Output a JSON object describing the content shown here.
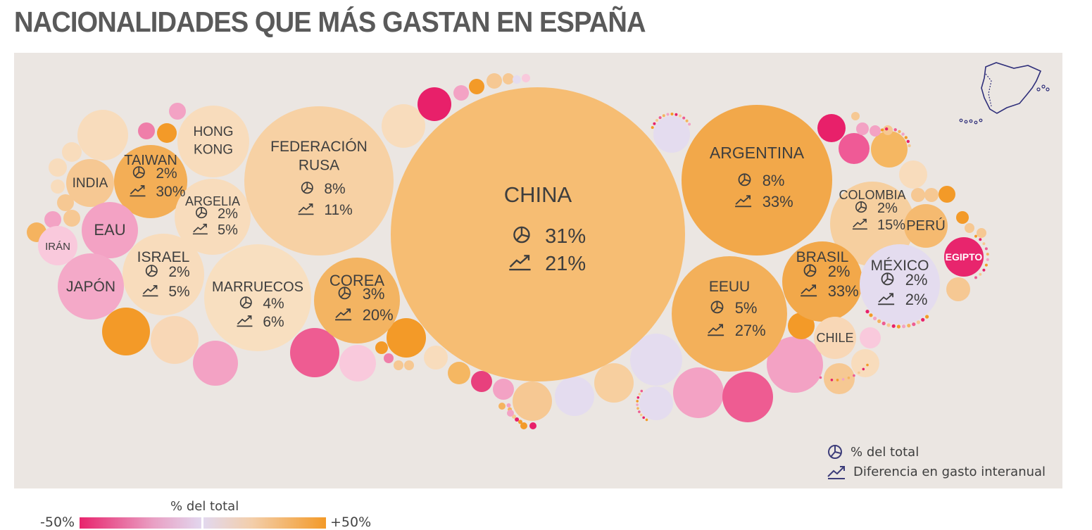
{
  "title": "NACIONALIDADES QUE MÁS GASTAN EN ESPAÑA",
  "chart_data": {
    "type": "bubble",
    "size_metric": "% del total",
    "color_metric": "Diferencia en gasto interanual",
    "series": [
      {
        "name": "CHINA",
        "share": "31%",
        "growth": "21%",
        "color": "#f6bd73"
      },
      {
        "name": "ARGENTINA",
        "share": "8%",
        "growth": "33%",
        "color": "#f2a84a"
      },
      {
        "name": "FEDERACIÓN RUSA",
        "share": "8%",
        "growth": "11%",
        "color": "#f7d1a4"
      },
      {
        "name": "EEUU",
        "share": "5%",
        "growth": "27%",
        "color": "#f3b05a"
      },
      {
        "name": "MARRUECOS",
        "share": "4%",
        "growth": "6%",
        "color": "#f8dfc0"
      },
      {
        "name": "COREA",
        "share": "3%",
        "growth": "20%",
        "color": "#f3b462"
      },
      {
        "name": "TAIWAN",
        "share": "2%",
        "growth": "30%",
        "color": "#f3ae56"
      },
      {
        "name": "ARGELIA",
        "share": "2%",
        "growth": "5%",
        "color": "#f8dcbc"
      },
      {
        "name": "ISRAEL",
        "share": "2%",
        "growth": "5%",
        "color": "#f8dcbc"
      },
      {
        "name": "COLOMBIA",
        "share": "2%",
        "growth": "15%",
        "color": "#f6cf9f"
      },
      {
        "name": "BRASIL",
        "share": "2%",
        "growth": "33%",
        "color": "#f2a84a"
      },
      {
        "name": "MÉXICO",
        "share": "2%",
        "growth": "2%",
        "color": "#e4dcef"
      }
    ],
    "unlabeled_values": [
      {
        "name": "HONG KONG",
        "color": "#f8dcbc"
      },
      {
        "name": "INDIA",
        "color": "#f6c893"
      },
      {
        "name": "EAU",
        "color": "#f3a2c4"
      },
      {
        "name": "JAPÓN",
        "color": "#f4a9c8"
      },
      {
        "name": "IRÁN",
        "color": "#f9c9dc"
      },
      {
        "name": "PERÚ",
        "color": "#f5ba70"
      },
      {
        "name": "CHILE",
        "color": "#f8d7b6"
      },
      {
        "name": "EGIPTO",
        "color": "#e8256d"
      }
    ],
    "color_scale": {
      "title": "% del total",
      "min_label": "-50%",
      "max_label": "+50%"
    },
    "legend": [
      {
        "icon": "pie-icon",
        "label": "% del total"
      },
      {
        "icon": "trend-icon",
        "label": "Diferencia en gasto interanual"
      }
    ]
  }
}
